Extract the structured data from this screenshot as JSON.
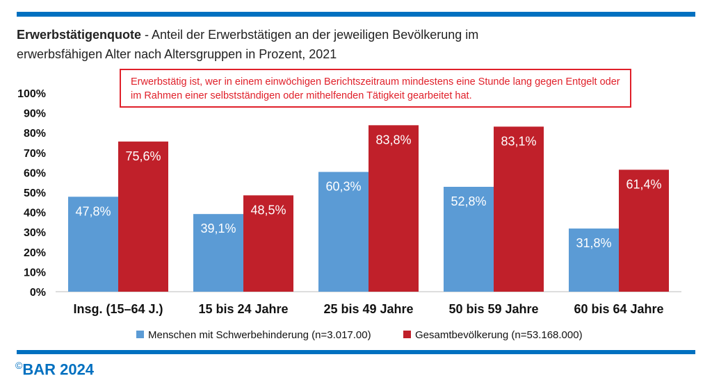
{
  "header": {
    "title_bold": "Erwerbstätigenquote",
    "title_rest": " - Anteil der Erwerbstätigen an der jeweiligen Bevölkerung im erwerbsfähigen Alter nach Altersgruppen in Prozent, 2021"
  },
  "note": "Erwerbstätig ist, wer in einem einwöchigen Berichtszeitraum mindestens eine Stunde lang gegen Entgelt oder im Rahmen einer selbstständigen oder mithelfenden Tätigkeit gearbeitet hat.",
  "footer": {
    "copyright_symbol": "©",
    "text": "BAR 2024"
  },
  "colors": {
    "accent": "#0070c0",
    "series1": "#5b9bd5",
    "series2": "#c0202a",
    "note": "#e0202a"
  },
  "chart_data": {
    "type": "bar",
    "categories": [
      "Insg. (15–64 J.)",
      "15 bis 24 Jahre",
      "25 bis 49 Jahre",
      "50 bis 59 Jahre",
      "60 bis 64 Jahre"
    ],
    "series": [
      {
        "name": "Menschen mit Schwerbehinderung (n=3.017.00)",
        "values": [
          47.8,
          39.1,
          60.3,
          52.8,
          31.8
        ],
        "labels": [
          "47,8%",
          "39,1%",
          "60,3%",
          "52,8%",
          "31,8%"
        ]
      },
      {
        "name": "Gesamtbevölkerung (n=53.168.000)",
        "values": [
          75.6,
          48.5,
          83.8,
          83.1,
          61.4
        ],
        "labels": [
          "75,6%",
          "48,5%",
          "83,8%",
          "83,1%",
          "61,4%"
        ]
      }
    ],
    "yticks": [
      "0%",
      "10%",
      "20%",
      "30%",
      "40%",
      "50%",
      "60%",
      "70%",
      "80%",
      "90%",
      "100%"
    ],
    "ylim": [
      0,
      100
    ],
    "grid": false,
    "legend": "bottom"
  }
}
